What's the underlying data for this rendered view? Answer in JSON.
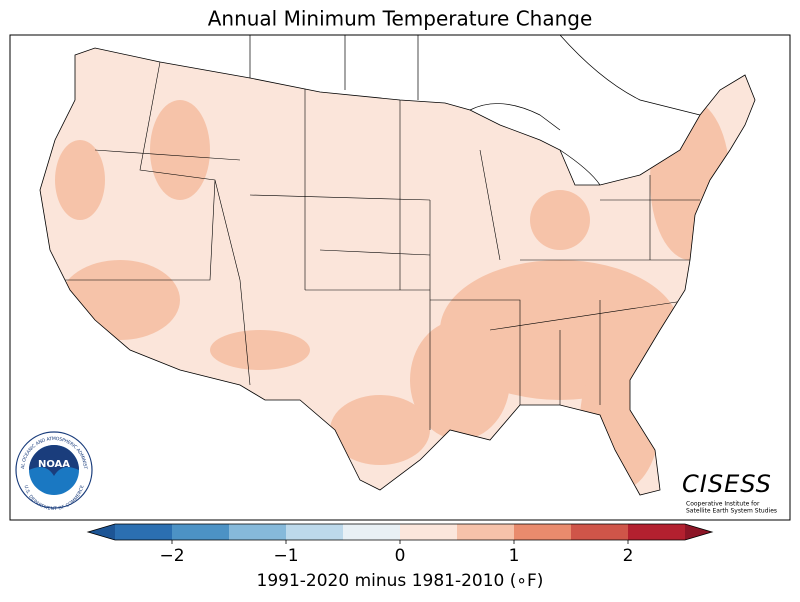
{
  "title": "Annual Minimum Temperature Change",
  "colorbar": {
    "bins": [
      -2.5,
      -2,
      -1.5,
      -1,
      -0.5,
      0,
      0.5,
      1,
      1.5,
      2,
      2.5
    ],
    "colors": [
      "#2b6fb1",
      "#4c92c5",
      "#86b9da",
      "#bdd9eb",
      "#e8f0f5",
      "#fbe6dc",
      "#f6c2aa",
      "#e98b6d",
      "#cf5549",
      "#b3202f"
    ],
    "extend_colors": [
      "#1d5595",
      "#8c1526"
    ],
    "ticks": [
      {
        "value": -2,
        "label": "−2"
      },
      {
        "value": -1,
        "label": "−1"
      },
      0,
      1,
      2
    ],
    "label": "1991-2020 minus 1981-2010 (∘F)"
  },
  "logos": {
    "noaa": {
      "name": "NOAA",
      "ring_top": "NATIONAL OCEANIC AND ATMOSPHERIC ADMINISTRATION",
      "ring_bottom": "U.S. DEPARTMENT OF COMMERCE"
    },
    "cisess": {
      "name": "CISESS",
      "line1": "Cooperative Institute for",
      "line2": "Satellite Earth System Studies"
    }
  }
}
